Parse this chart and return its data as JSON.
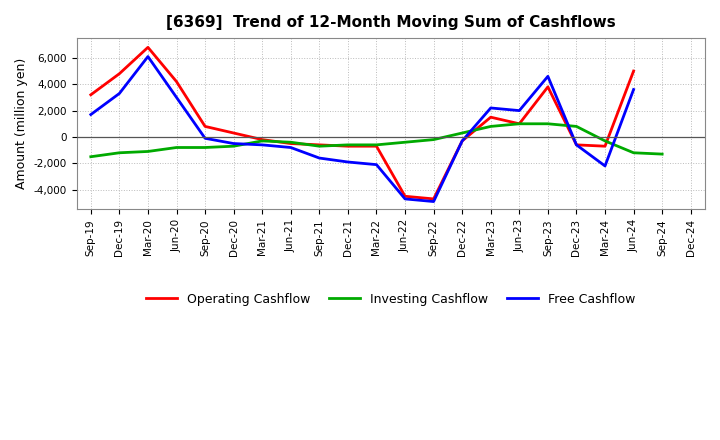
{
  "title": "[6369]  Trend of 12-Month Moving Sum of Cashflows",
  "ylabel": "Amount (million yen)",
  "background_color": "#ffffff",
  "grid_color": "#aaaaaa",
  "labels": [
    "Sep-19",
    "Dec-19",
    "Mar-20",
    "Jun-20",
    "Sep-20",
    "Dec-20",
    "Mar-21",
    "Jun-21",
    "Sep-21",
    "Dec-21",
    "Mar-22",
    "Jun-22",
    "Sep-22",
    "Dec-22",
    "Mar-23",
    "Jun-23",
    "Sep-23",
    "Dec-23",
    "Mar-24",
    "Jun-24",
    "Sep-24",
    "Dec-24"
  ],
  "operating_cashflow": [
    3200,
    4800,
    6800,
    4200,
    800,
    300,
    -200,
    -500,
    -600,
    -700,
    -700,
    -4500,
    -4700,
    -300,
    1500,
    1000,
    3800,
    -600,
    -700,
    5000,
    null,
    null
  ],
  "investing_cashflow": [
    -1500,
    -1200,
    -1100,
    -800,
    -800,
    -700,
    -300,
    -400,
    -700,
    -600,
    -600,
    -400,
    -200,
    300,
    800,
    1000,
    1000,
    800,
    -300,
    -1200,
    -1300,
    null
  ],
  "free_cashflow": [
    1700,
    3300,
    6100,
    3000,
    -100,
    -500,
    -600,
    -800,
    -1600,
    -1900,
    -2100,
    -4700,
    -4900,
    -300,
    2200,
    2000,
    4600,
    -600,
    -2200,
    3600,
    null,
    null
  ],
  "operating_color": "#ff0000",
  "investing_color": "#00aa00",
  "free_color": "#0000ff",
  "ylim": [
    -5500,
    7500
  ],
  "yticks": [
    -4000,
    -2000,
    0,
    2000,
    4000,
    6000
  ],
  "line_width": 2.0,
  "title_fontsize": 11,
  "tick_fontsize": 7.5,
  "ylabel_fontsize": 9
}
